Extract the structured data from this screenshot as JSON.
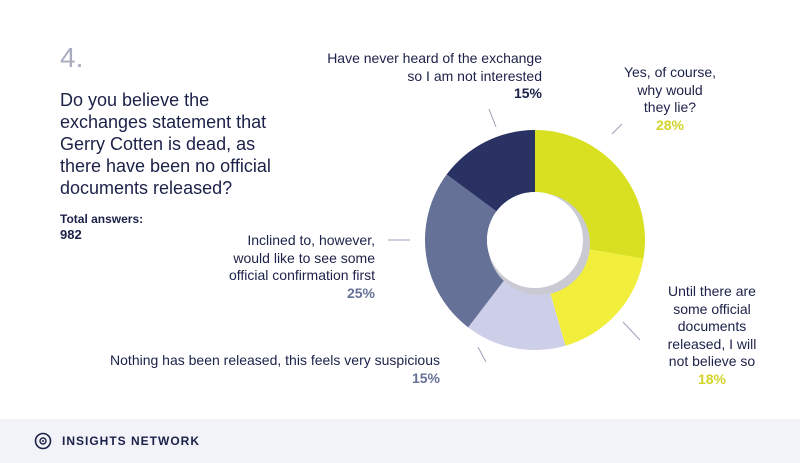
{
  "question": {
    "number": "4.",
    "text": "Do you believe the exchanges statement that Gerry Cotten is dead, as there have been no official documents released?",
    "total_label": "Total answers:",
    "total_value": "982"
  },
  "chart_data": {
    "type": "pie",
    "donut": true,
    "slices": [
      {
        "label": "Yes, of course, why would they lie?",
        "pct_label": "28%",
        "value": 28,
        "color": "#d9e021"
      },
      {
        "label": "Until there are some official documents released, I will not believe so",
        "pct_label": "18%",
        "value": 18,
        "color": "#f1ee3c"
      },
      {
        "label": "Nothing has been released, this feels very suspicious",
        "pct_label": "15%",
        "value": 15,
        "color": "#cdcfe8"
      },
      {
        "label": "Inclined to, however, would like to see some official confirmation first",
        "pct_label": "25%",
        "value": 25,
        "color": "#667198"
      },
      {
        "label": "Have never heard of the exchange so I am not interested",
        "pct_label": "15%",
        "value": 15,
        "color": "#2a3264"
      }
    ],
    "pct_colors": {
      "yellow": "#d3d32a",
      "slate": "#667198",
      "navy": "#1b2148"
    },
    "display_lines": {
      "top": [
        "Have never heard of the exchange",
        "so I am not interested"
      ],
      "yes": [
        "Yes, of course,",
        "why would",
        "they lie?"
      ],
      "until": [
        "Until there are",
        "some official",
        "documents",
        "released, I will",
        "not believe so"
      ],
      "nothing": [
        "Nothing has been released, this feels very suspicious"
      ],
      "inclined": [
        "Inclined to, however,",
        "would like to see some",
        "official confirmation first"
      ]
    }
  },
  "footer": {
    "brand": "INSIGHTS NETWORK",
    "logo_icon": "insights-network-logo-icon"
  }
}
